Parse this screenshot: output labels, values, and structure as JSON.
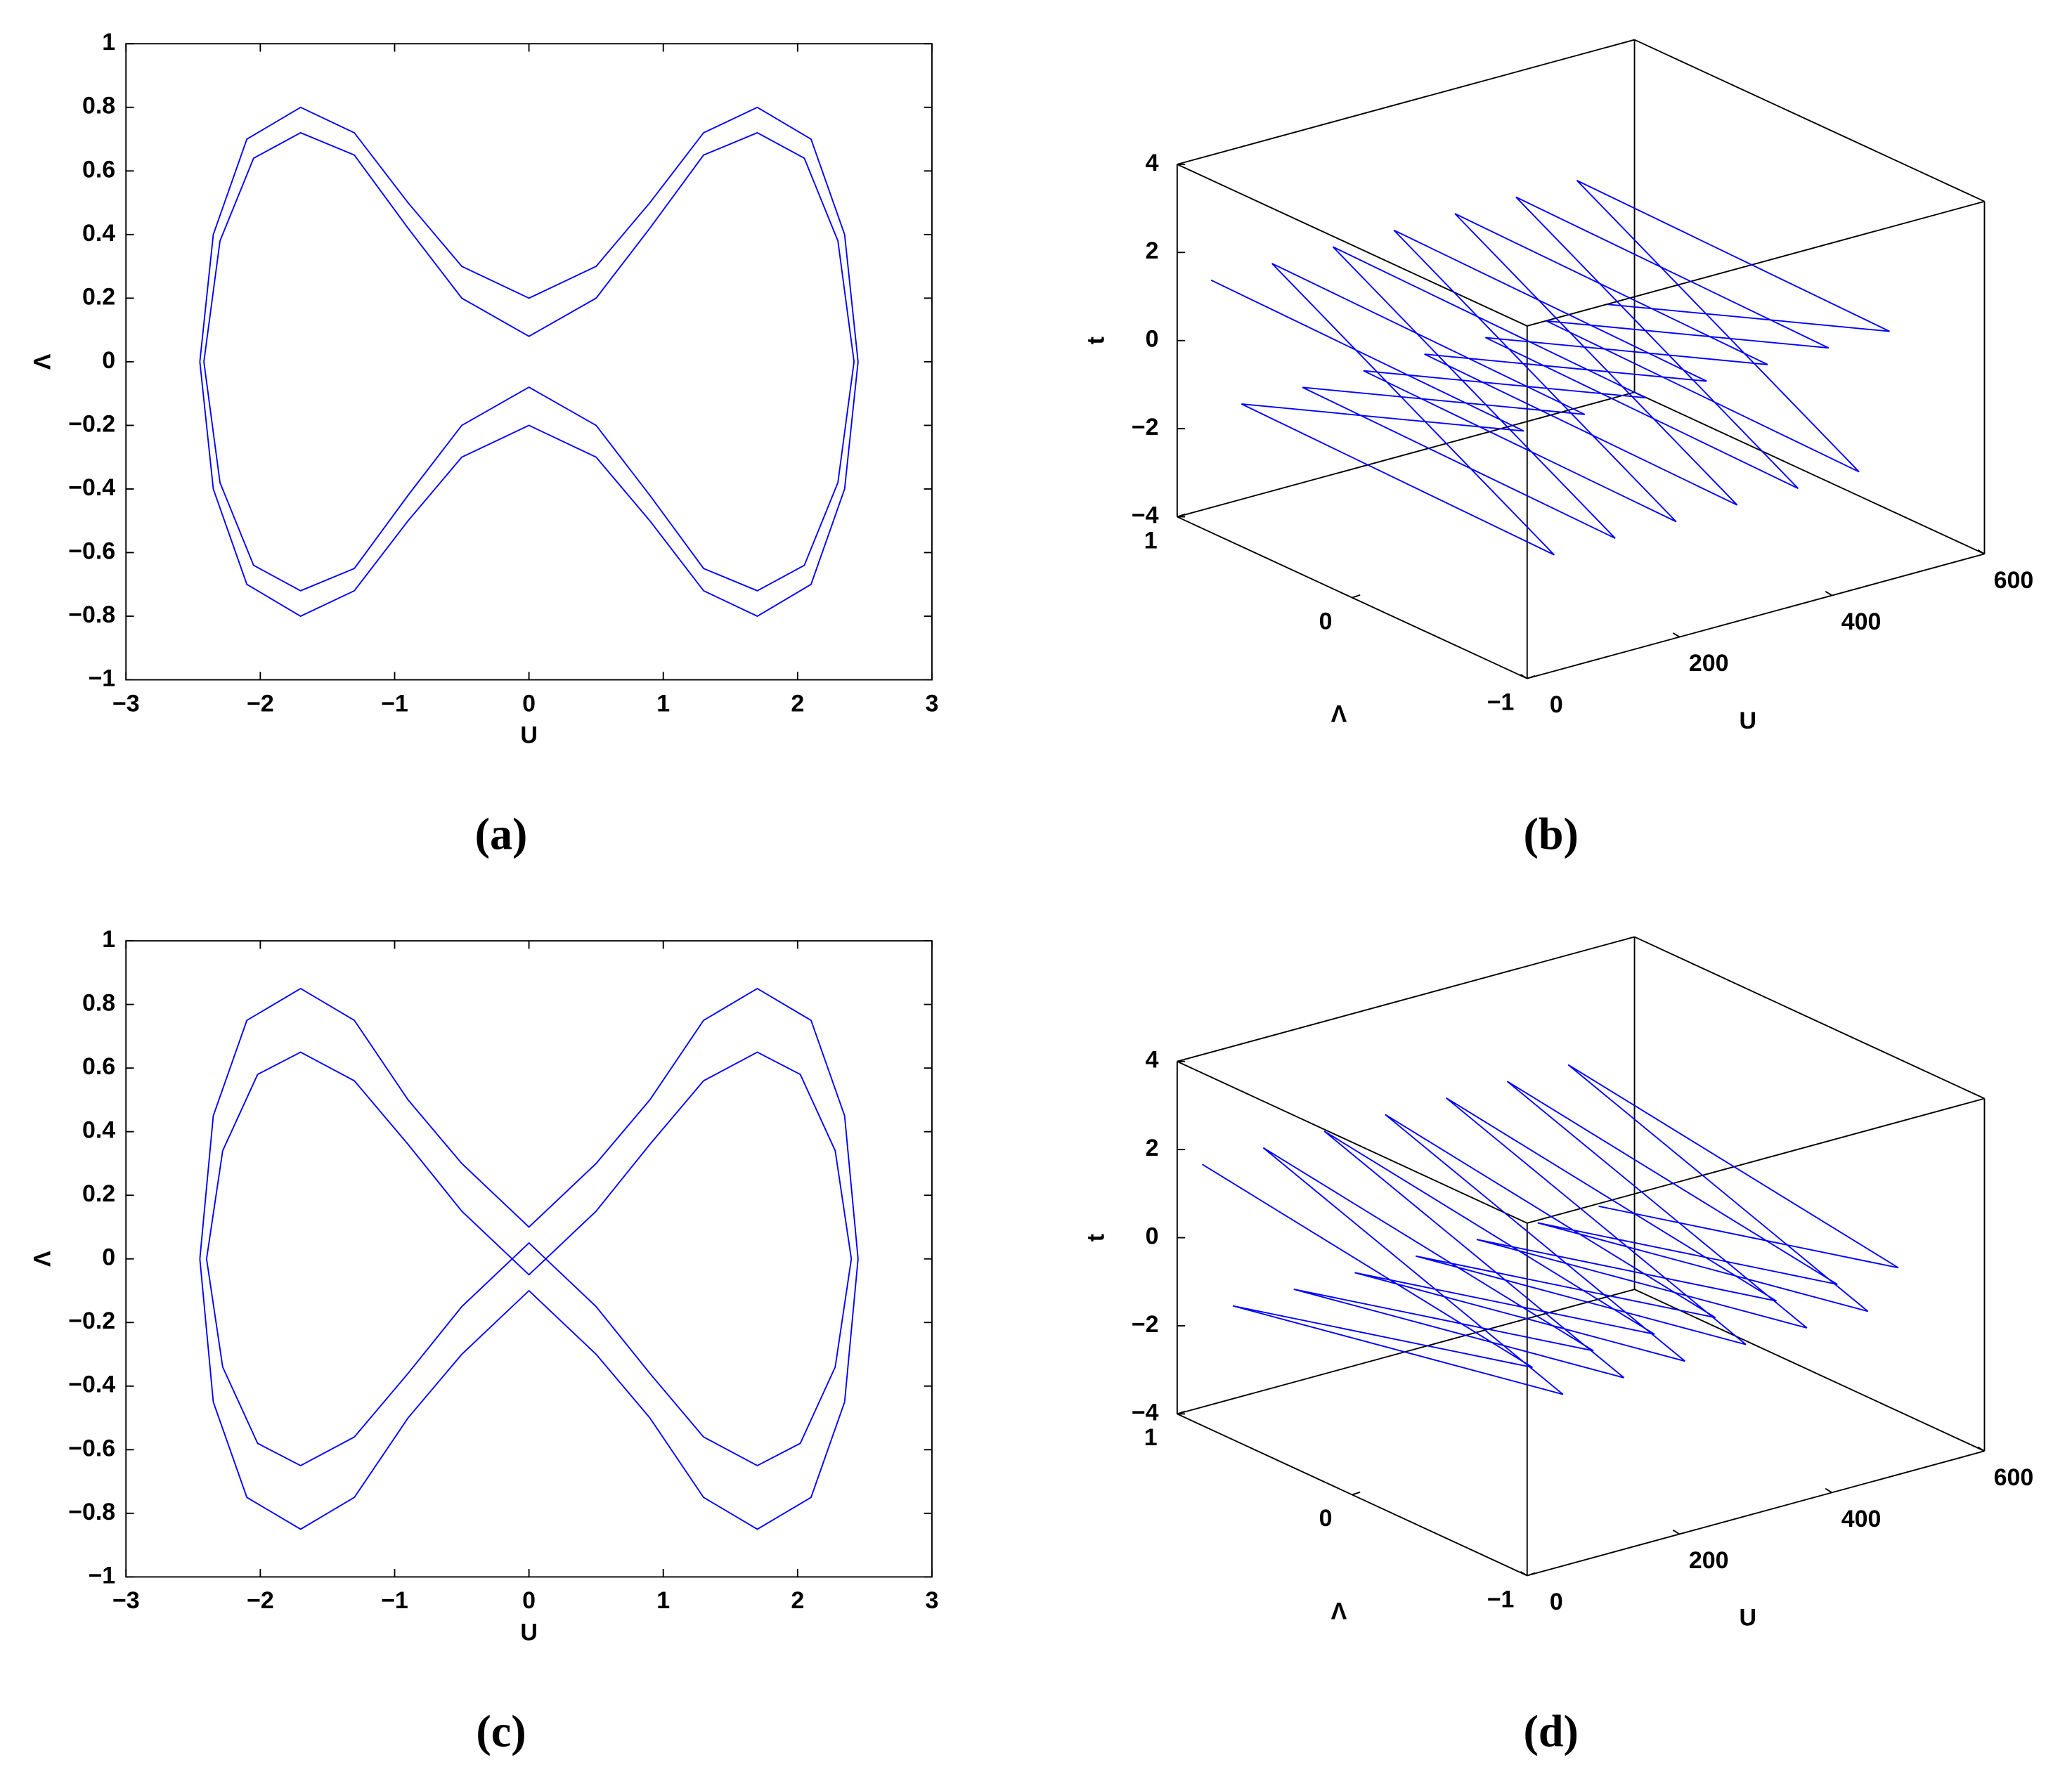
{
  "chart_data": [
    {
      "type": "line",
      "caption": "(a)",
      "xlabel": "U",
      "ylabel": "Λ",
      "xlim": [
        -3,
        3
      ],
      "ylim": [
        -1,
        1
      ],
      "xticks": [
        {
          "value": -3,
          "label": "−3"
        },
        {
          "value": -2,
          "label": "−2"
        },
        {
          "value": -1,
          "label": "−1"
        },
        0,
        1,
        2,
        3
      ],
      "yticks": [
        {
          "value": -1,
          "label": "−1"
        },
        {
          "value": -0.8,
          "label": "−0.8"
        },
        {
          "value": -0.6,
          "label": "−0.6"
        },
        {
          "value": -0.4,
          "label": "−0.4"
        },
        {
          "value": -0.2,
          "label": "−0.2"
        },
        0,
        0.2,
        0.4,
        0.6,
        0.8,
        1
      ],
      "series": [
        {
          "color": "#0000ff",
          "x": [
            -2.45,
            -2.35,
            -2.1,
            -1.7,
            -1.3,
            -0.9,
            -0.5,
            0,
            0.5,
            0.9,
            1.3,
            1.7,
            2.1,
            2.35,
            2.45,
            2.35,
            2.1,
            1.7,
            1.3,
            0.9,
            0.5,
            0,
            -0.5,
            -0.9,
            -1.3,
            -1.7,
            -2.1,
            -2.35,
            -2.45,
            null,
            -2.42,
            -2.3,
            -2.05,
            -1.7,
            -1.3,
            -0.9,
            -0.5,
            0,
            0.5,
            0.9,
            1.3,
            1.7,
            2.05,
            2.3,
            2.42,
            2.3,
            2.05,
            1.7,
            1.3,
            0.9,
            0.5,
            0,
            -0.5,
            -0.9,
            -1.3,
            -1.7,
            -2.05,
            -2.3,
            -2.42
          ],
          "y": [
            0,
            0.4,
            0.7,
            0.8,
            0.72,
            0.5,
            0.3,
            0.2,
            0.3,
            0.5,
            0.72,
            0.8,
            0.7,
            0.4,
            0,
            -0.4,
            -0.7,
            -0.8,
            -0.72,
            -0.5,
            -0.3,
            -0.2,
            -0.3,
            -0.5,
            -0.72,
            -0.8,
            -0.7,
            -0.4,
            0,
            null,
            0,
            0.38,
            0.64,
            0.72,
            0.65,
            0.42,
            0.2,
            0.08,
            0.2,
            0.42,
            0.65,
            0.72,
            0.64,
            0.38,
            0,
            -0.38,
            -0.64,
            -0.72,
            -0.65,
            -0.42,
            -0.2,
            -0.08,
            -0.2,
            -0.42,
            -0.65,
            -0.72,
            -0.64,
            -0.38,
            0
          ]
        }
      ]
    },
    {
      "type": "line3d",
      "caption": "(b)",
      "xlabel": "U",
      "ylabel": "Λ",
      "zlabel": "t",
      "xlim": [
        0,
        600
      ],
      "ylim": [
        -1,
        1
      ],
      "zlim": [
        -4,
        4
      ],
      "xticks": [
        0,
        200,
        400,
        600
      ],
      "yticks": [
        {
          "value": -1,
          "label": "−1"
        },
        0,
        1
      ],
      "zticks": [
        {
          "value": -4,
          "label": "−4"
        },
        {
          "value": -2,
          "label": "−2"
        },
        0,
        2,
        4
      ],
      "series": [
        {
          "color": "#0000ff",
          "x": [
            10,
            30,
            50,
            70,
            90,
            110,
            130,
            150,
            170,
            190,
            210,
            230,
            250,
            270,
            290,
            310,
            330,
            350,
            370,
            390,
            410,
            430,
            450,
            470,
            490,
            510,
            530
          ],
          "y": [
            0.85,
            -0.85,
            0.85,
            -0.85,
            0.85,
            -0.85,
            0.85,
            -0.85,
            0.85,
            -0.85,
            0.85,
            -0.85,
            0.85,
            -0.85,
            0.85,
            -0.85,
            0.85,
            -0.85,
            0.85,
            -0.85,
            0.85,
            -0.85,
            0.85,
            -0.85,
            0.85,
            -0.85,
            0.85
          ],
          "z": [
            1.6,
            1.2,
            -1.4,
            -1.8,
            1.6,
            1.2,
            -1.4,
            -1.8,
            1.6,
            1.2,
            -1.4,
            -1.8,
            1.6,
            1.2,
            -1.4,
            -1.8,
            1.6,
            1.2,
            -1.4,
            -1.8,
            1.6,
            1.2,
            -1.4,
            -1.8,
            1.6,
            1.2,
            -1.4
          ]
        }
      ]
    },
    {
      "type": "line",
      "caption": "(c)",
      "xlabel": "U",
      "ylabel": "Λ",
      "xlim": [
        -3,
        3
      ],
      "ylim": [
        -1,
        1
      ],
      "xticks": [
        {
          "value": -3,
          "label": "−3"
        },
        {
          "value": -2,
          "label": "−2"
        },
        {
          "value": -1,
          "label": "−1"
        },
        0,
        1,
        2,
        3
      ],
      "yticks": [
        {
          "value": -1,
          "label": "−1"
        },
        {
          "value": -0.8,
          "label": "−0.8"
        },
        {
          "value": -0.6,
          "label": "−0.6"
        },
        {
          "value": -0.4,
          "label": "−0.4"
        },
        {
          "value": -0.2,
          "label": "−0.2"
        },
        0,
        0.2,
        0.4,
        0.6,
        0.8,
        1
      ],
      "series": [
        {
          "color": "#0000ff",
          "x": [
            -2.45,
            -2.35,
            -2.1,
            -1.7,
            -1.3,
            -0.9,
            -0.5,
            0,
            0.5,
            0.9,
            1.3,
            1.7,
            2.1,
            2.35,
            2.45,
            2.35,
            2.1,
            1.7,
            1.3,
            0.9,
            0.5,
            0,
            -0.5,
            -0.9,
            -1.3,
            -1.7,
            -2.1,
            -2.35,
            -2.45,
            null,
            -2.4,
            -2.28,
            -2.02,
            -1.7,
            -1.3,
            -0.9,
            -0.5,
            0,
            0.5,
            0.9,
            1.3,
            1.7,
            2.02,
            2.28,
            2.4,
            2.28,
            2.02,
            1.7,
            1.3,
            0.9,
            0.5,
            0,
            -0.5,
            -0.9,
            -1.3,
            -1.7,
            -2.02,
            -2.28,
            -2.4
          ],
          "y": [
            0,
            0.45,
            0.75,
            0.85,
            0.75,
            0.5,
            0.3,
            0.1,
            0.3,
            0.5,
            0.75,
            0.85,
            0.75,
            0.45,
            0,
            -0.45,
            -0.75,
            -0.85,
            -0.75,
            -0.5,
            -0.3,
            -0.1,
            -0.3,
            -0.5,
            -0.75,
            -0.85,
            -0.75,
            -0.45,
            0,
            null,
            0,
            0.34,
            0.58,
            0.65,
            0.56,
            0.36,
            0.15,
            -0.05,
            0.15,
            0.36,
            0.56,
            0.65,
            0.58,
            0.34,
            0,
            -0.34,
            -0.58,
            -0.65,
            -0.56,
            -0.36,
            -0.15,
            0.05,
            -0.15,
            -0.36,
            -0.56,
            -0.65,
            -0.58,
            -0.34,
            0
          ]
        }
      ]
    },
    {
      "type": "line3d",
      "caption": "(d)",
      "xlabel": "U",
      "ylabel": "Λ",
      "zlabel": "t",
      "xlim": [
        0,
        600
      ],
      "ylim": [
        -1,
        1
      ],
      "zlim": [
        -4,
        4
      ],
      "xticks": [
        0,
        200,
        400,
        600
      ],
      "yticks": [
        {
          "value": -1,
          "label": "−1"
        },
        0,
        1
      ],
      "zticks": [
        {
          "value": -4,
          "label": "−4"
        },
        {
          "value": -2,
          "label": "−2"
        },
        0,
        2,
        4
      ],
      "series": [
        {
          "color": "#0000ff",
          "x": [
            10,
            30,
            50,
            70,
            90,
            110,
            130,
            150,
            170,
            190,
            210,
            230,
            250,
            270,
            290,
            310,
            330,
            350,
            370,
            390,
            410,
            430,
            450,
            470,
            490,
            510,
            530
          ],
          "y": [
            0.9,
            -0.9,
            0.9,
            -0.9,
            0.9,
            -0.9,
            0.9,
            -0.9,
            0.9,
            -0.9,
            0.9,
            -0.9,
            0.9,
            -0.9,
            0.9,
            -0.9,
            0.9,
            -0.9,
            0.9,
            -0.9,
            0.9,
            -0.9,
            0.9,
            -0.9,
            0.9,
            -0.9,
            0.9
          ],
          "z": [
            1.8,
            0.4,
            -1.6,
            -0.4,
            1.8,
            0.4,
            -1.6,
            -0.4,
            1.8,
            0.4,
            -1.6,
            -0.4,
            1.8,
            0.4,
            -1.6,
            -0.4,
            1.8,
            0.4,
            -1.6,
            -0.4,
            1.8,
            0.4,
            -1.6,
            -0.4,
            1.8,
            0.4,
            -1.6
          ]
        }
      ]
    }
  ]
}
